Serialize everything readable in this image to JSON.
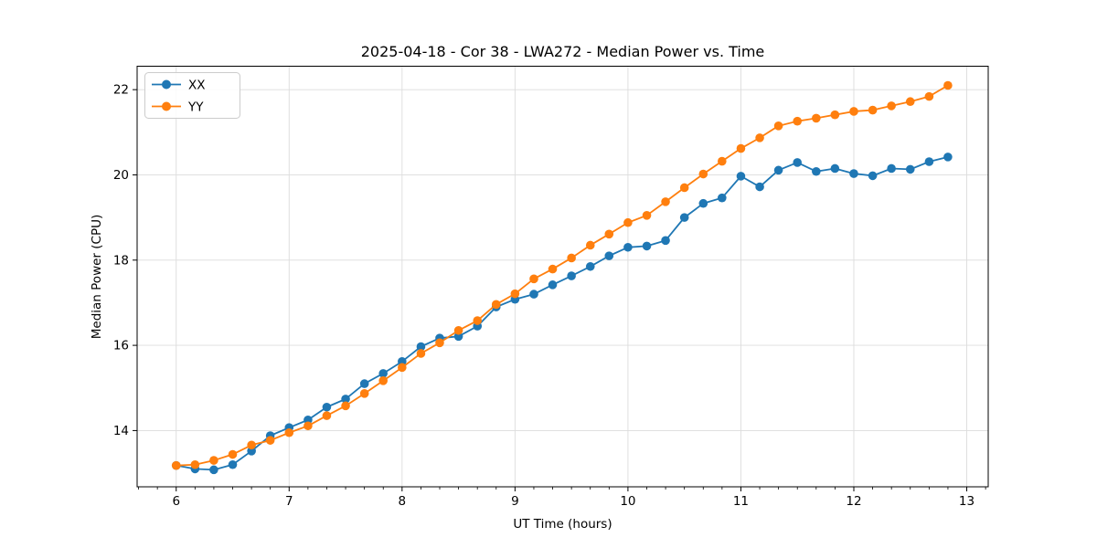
{
  "chart_data": {
    "type": "line",
    "title": "2025-04-18 - Cor 38 - LWA272 - Median Power vs. Time",
    "xlabel": "UT Time (hours)",
    "ylabel": "Median Power (CPU)",
    "xlim": [
      5.654,
      13.19
    ],
    "ylim": [
      12.68,
      22.55
    ],
    "x_major_ticks": [
      6,
      7,
      8,
      9,
      10,
      11,
      12,
      13
    ],
    "x_minor_tick_step": 0.166667,
    "y_major_ticks": [
      14,
      16,
      18,
      20,
      22
    ],
    "grid": true,
    "grid_color": "#dcdcdc",
    "legend_position": "upper-left",
    "background_color": "#ffffff",
    "x": [
      6.0,
      6.167,
      6.333,
      6.5,
      6.667,
      6.833,
      7.0,
      7.167,
      7.333,
      7.5,
      7.667,
      7.833,
      8.0,
      8.167,
      8.333,
      8.5,
      8.667,
      8.833,
      9.0,
      9.167,
      9.333,
      9.5,
      9.667,
      9.833,
      10.0,
      10.167,
      10.333,
      10.5,
      10.667,
      10.833,
      11.0,
      11.167,
      11.333,
      11.5,
      11.667,
      11.833,
      12.0,
      12.167,
      12.333,
      12.5,
      12.667,
      12.833
    ],
    "series": [
      {
        "name": "XX",
        "color": "#1f77b4",
        "values": [
          13.18,
          13.1,
          13.08,
          13.2,
          13.52,
          13.88,
          14.07,
          14.25,
          14.55,
          14.74,
          15.1,
          15.34,
          15.62,
          15.97,
          16.17,
          16.21,
          16.45,
          16.9,
          17.08,
          17.2,
          17.42,
          17.63,
          17.85,
          18.1,
          18.3,
          18.33,
          18.46,
          19.0,
          19.33,
          19.46,
          19.97,
          19.72,
          20.11,
          20.29,
          20.08,
          20.15,
          20.03,
          19.98,
          20.15,
          20.13,
          20.31,
          20.42
        ]
      },
      {
        "name": "YY",
        "color": "#ff7f0e",
        "values": [
          13.18,
          13.2,
          13.3,
          13.44,
          13.66,
          13.77,
          13.95,
          14.11,
          14.35,
          14.58,
          14.87,
          15.17,
          15.48,
          15.81,
          16.06,
          16.35,
          16.58,
          16.96,
          17.21,
          17.56,
          17.79,
          18.05,
          18.35,
          18.61,
          18.88,
          19.05,
          19.37,
          19.7,
          20.02,
          20.32,
          20.62,
          20.87,
          21.15,
          21.26,
          21.33,
          21.41,
          21.49,
          21.52,
          21.62,
          21.72,
          21.84,
          22.1
        ]
      }
    ],
    "marker": "circle",
    "marker_radius": 4.8,
    "line_width": 1.8
  }
}
